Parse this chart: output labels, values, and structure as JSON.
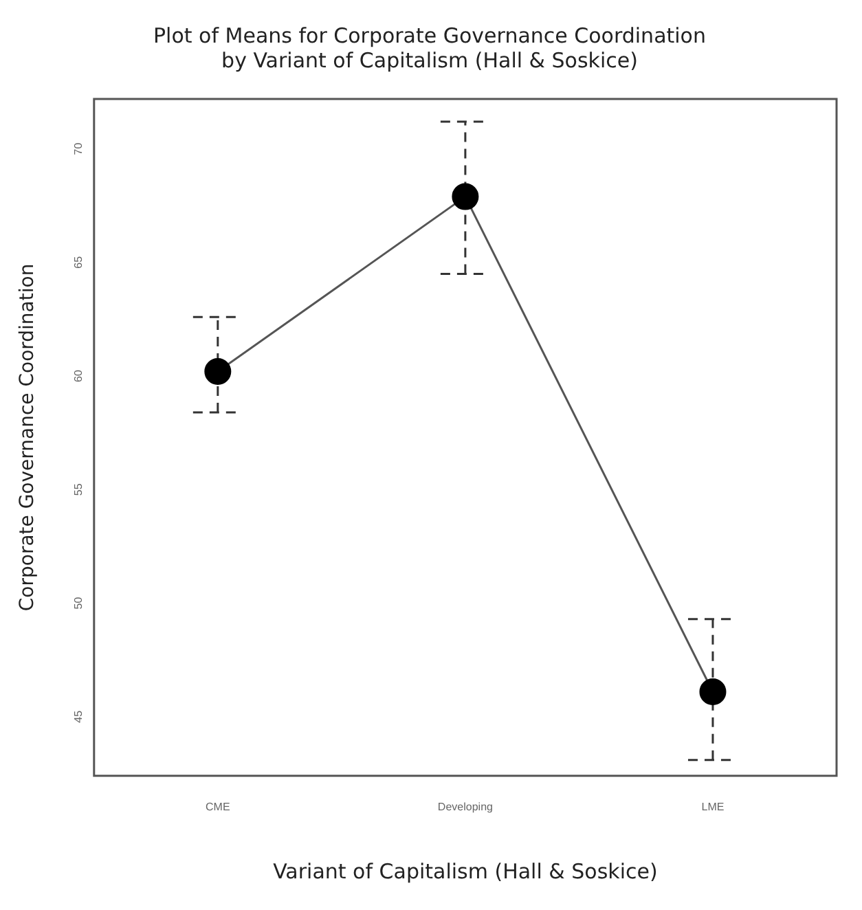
{
  "chart_data": {
    "type": "line",
    "title": "Plot of Means for Corporate Governance Coordination\nby Variant of Capitalism (Hall & Soskice)",
    "xlabel": "Variant of Capitalism (Hall & Soskice)",
    "ylabel": "Corporate Governance Coordination",
    "categories": [
      "CME",
      "Developing",
      "LME"
    ],
    "series": [
      {
        "color": "#555555",
        "values": [
          60.2,
          67.9,
          46.1
        ],
        "errors": [
          [
            58.4,
            62.6
          ],
          [
            64.5,
            71.2
          ],
          [
            43.1,
            49.3
          ]
        ]
      }
    ],
    "ylim": [
      42.4,
      72.2
    ],
    "yticks": [
      45,
      50,
      55,
      60,
      65,
      70
    ],
    "grid": false,
    "legend": false,
    "marker": "circle",
    "line_style": "solid"
  }
}
